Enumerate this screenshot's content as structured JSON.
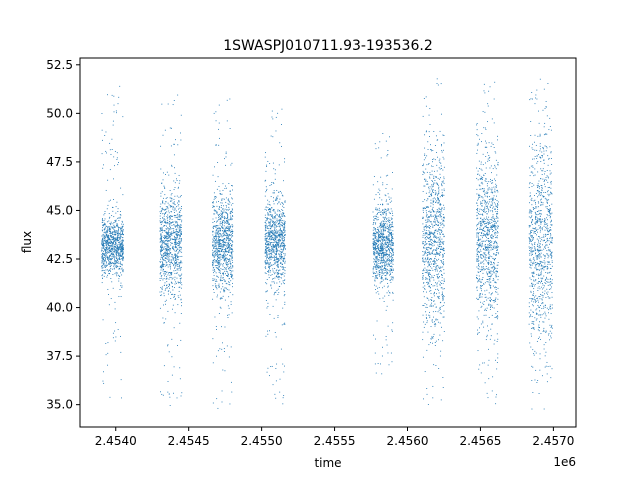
{
  "chart_data": {
    "type": "scatter",
    "title": "1SWASPJ010711.93-193536.2",
    "xlabel": "time",
    "ylabel": "flux",
    "x_offset_label": "1e6",
    "xlim": [
      2453755,
      2457155
    ],
    "ylim": [
      33.85,
      52.85
    ],
    "x_ticks": [
      2454000,
      2454500,
      2455000,
      2455500,
      2456000,
      2456500,
      2457000
    ],
    "x_tick_labels": [
      "2.4540",
      "2.4545",
      "2.4550",
      "2.4555",
      "2.4560",
      "2.4565",
      "2.4570"
    ],
    "y_ticks": [
      35.0,
      37.5,
      40.0,
      42.5,
      45.0,
      47.5,
      50.0,
      52.5
    ],
    "y_tick_labels": [
      "35.0",
      "37.5",
      "40.0",
      "42.5",
      "45.0",
      "47.5",
      "50.0",
      "52.5"
    ],
    "grid": false,
    "marker_color": "#1f77b4",
    "marker": "small dots",
    "seasons": [
      {
        "start": 2453900,
        "end": 2454050,
        "center": 43.2,
        "core": [
          42.0,
          45.0
        ],
        "extreme": [
          35.3,
          51.5
        ]
      },
      {
        "start": 2454300,
        "end": 2454450,
        "center": 43.3,
        "core": [
          40.3,
          45.5
        ],
        "extreme": [
          34.8,
          51.2
        ]
      },
      {
        "start": 2454660,
        "end": 2454800,
        "center": 43.3,
        "core": [
          41.0,
          46.0
        ],
        "extreme": [
          34.8,
          51.0
        ]
      },
      {
        "start": 2455020,
        "end": 2455160,
        "center": 43.4,
        "core": [
          41.0,
          45.5
        ],
        "extreme": [
          35.0,
          50.4
        ]
      },
      {
        "start": 2455760,
        "end": 2455900,
        "center": 43.2,
        "core": [
          41.5,
          45.5
        ],
        "extreme": [
          36.0,
          49.0
        ]
      },
      {
        "start": 2456100,
        "end": 2456250,
        "center": 43.5,
        "core": [
          38.5,
          47.5
        ],
        "extreme": [
          35.0,
          51.8
        ]
      },
      {
        "start": 2456470,
        "end": 2456620,
        "center": 43.5,
        "core": [
          39.0,
          47.5
        ],
        "extreme": [
          35.0,
          51.8
        ]
      },
      {
        "start": 2456830,
        "end": 2456990,
        "center": 43.3,
        "core": [
          38.0,
          48.5
        ],
        "extreme": [
          34.8,
          51.8
        ]
      }
    ]
  }
}
